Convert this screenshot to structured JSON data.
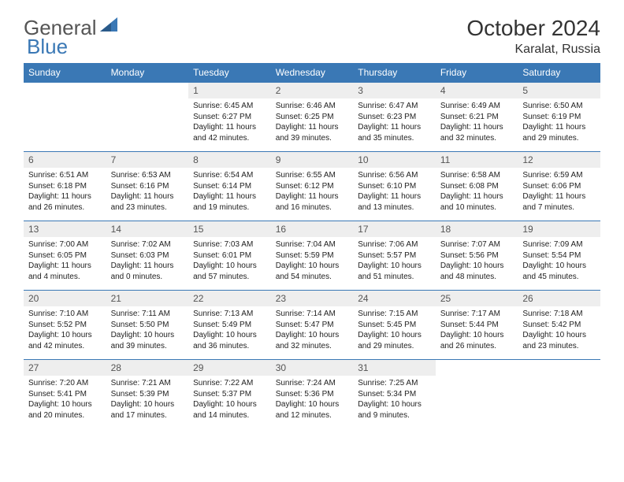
{
  "logo": {
    "text1": "General",
    "text2": "Blue",
    "shape_color": "#3a78b5"
  },
  "header": {
    "month_title": "October 2024",
    "location": "Karalat, Russia"
  },
  "colors": {
    "header_bg": "#3a78b5",
    "header_text": "#ffffff",
    "daynum_bg": "#eeeeee",
    "daynum_text": "#555555",
    "body_text": "#222222",
    "border": "#3a78b5"
  },
  "typography": {
    "month_title_size": 28,
    "location_size": 16,
    "weekday_size": 12,
    "daynum_size": 12,
    "content_size": 10
  },
  "weekdays": [
    "Sunday",
    "Monday",
    "Tuesday",
    "Wednesday",
    "Thursday",
    "Friday",
    "Saturday"
  ],
  "weeks": [
    [
      null,
      null,
      {
        "n": "1",
        "sr": "Sunrise: 6:45 AM",
        "ss": "Sunset: 6:27 PM",
        "dl": "Daylight: 11 hours and 42 minutes."
      },
      {
        "n": "2",
        "sr": "Sunrise: 6:46 AM",
        "ss": "Sunset: 6:25 PM",
        "dl": "Daylight: 11 hours and 39 minutes."
      },
      {
        "n": "3",
        "sr": "Sunrise: 6:47 AM",
        "ss": "Sunset: 6:23 PM",
        "dl": "Daylight: 11 hours and 35 minutes."
      },
      {
        "n": "4",
        "sr": "Sunrise: 6:49 AM",
        "ss": "Sunset: 6:21 PM",
        "dl": "Daylight: 11 hours and 32 minutes."
      },
      {
        "n": "5",
        "sr": "Sunrise: 6:50 AM",
        "ss": "Sunset: 6:19 PM",
        "dl": "Daylight: 11 hours and 29 minutes."
      }
    ],
    [
      {
        "n": "6",
        "sr": "Sunrise: 6:51 AM",
        "ss": "Sunset: 6:18 PM",
        "dl": "Daylight: 11 hours and 26 minutes."
      },
      {
        "n": "7",
        "sr": "Sunrise: 6:53 AM",
        "ss": "Sunset: 6:16 PM",
        "dl": "Daylight: 11 hours and 23 minutes."
      },
      {
        "n": "8",
        "sr": "Sunrise: 6:54 AM",
        "ss": "Sunset: 6:14 PM",
        "dl": "Daylight: 11 hours and 19 minutes."
      },
      {
        "n": "9",
        "sr": "Sunrise: 6:55 AM",
        "ss": "Sunset: 6:12 PM",
        "dl": "Daylight: 11 hours and 16 minutes."
      },
      {
        "n": "10",
        "sr": "Sunrise: 6:56 AM",
        "ss": "Sunset: 6:10 PM",
        "dl": "Daylight: 11 hours and 13 minutes."
      },
      {
        "n": "11",
        "sr": "Sunrise: 6:58 AM",
        "ss": "Sunset: 6:08 PM",
        "dl": "Daylight: 11 hours and 10 minutes."
      },
      {
        "n": "12",
        "sr": "Sunrise: 6:59 AM",
        "ss": "Sunset: 6:06 PM",
        "dl": "Daylight: 11 hours and 7 minutes."
      }
    ],
    [
      {
        "n": "13",
        "sr": "Sunrise: 7:00 AM",
        "ss": "Sunset: 6:05 PM",
        "dl": "Daylight: 11 hours and 4 minutes."
      },
      {
        "n": "14",
        "sr": "Sunrise: 7:02 AM",
        "ss": "Sunset: 6:03 PM",
        "dl": "Daylight: 11 hours and 0 minutes."
      },
      {
        "n": "15",
        "sr": "Sunrise: 7:03 AM",
        "ss": "Sunset: 6:01 PM",
        "dl": "Daylight: 10 hours and 57 minutes."
      },
      {
        "n": "16",
        "sr": "Sunrise: 7:04 AM",
        "ss": "Sunset: 5:59 PM",
        "dl": "Daylight: 10 hours and 54 minutes."
      },
      {
        "n": "17",
        "sr": "Sunrise: 7:06 AM",
        "ss": "Sunset: 5:57 PM",
        "dl": "Daylight: 10 hours and 51 minutes."
      },
      {
        "n": "18",
        "sr": "Sunrise: 7:07 AM",
        "ss": "Sunset: 5:56 PM",
        "dl": "Daylight: 10 hours and 48 minutes."
      },
      {
        "n": "19",
        "sr": "Sunrise: 7:09 AM",
        "ss": "Sunset: 5:54 PM",
        "dl": "Daylight: 10 hours and 45 minutes."
      }
    ],
    [
      {
        "n": "20",
        "sr": "Sunrise: 7:10 AM",
        "ss": "Sunset: 5:52 PM",
        "dl": "Daylight: 10 hours and 42 minutes."
      },
      {
        "n": "21",
        "sr": "Sunrise: 7:11 AM",
        "ss": "Sunset: 5:50 PM",
        "dl": "Daylight: 10 hours and 39 minutes."
      },
      {
        "n": "22",
        "sr": "Sunrise: 7:13 AM",
        "ss": "Sunset: 5:49 PM",
        "dl": "Daylight: 10 hours and 36 minutes."
      },
      {
        "n": "23",
        "sr": "Sunrise: 7:14 AM",
        "ss": "Sunset: 5:47 PM",
        "dl": "Daylight: 10 hours and 32 minutes."
      },
      {
        "n": "24",
        "sr": "Sunrise: 7:15 AM",
        "ss": "Sunset: 5:45 PM",
        "dl": "Daylight: 10 hours and 29 minutes."
      },
      {
        "n": "25",
        "sr": "Sunrise: 7:17 AM",
        "ss": "Sunset: 5:44 PM",
        "dl": "Daylight: 10 hours and 26 minutes."
      },
      {
        "n": "26",
        "sr": "Sunrise: 7:18 AM",
        "ss": "Sunset: 5:42 PM",
        "dl": "Daylight: 10 hours and 23 minutes."
      }
    ],
    [
      {
        "n": "27",
        "sr": "Sunrise: 7:20 AM",
        "ss": "Sunset: 5:41 PM",
        "dl": "Daylight: 10 hours and 20 minutes."
      },
      {
        "n": "28",
        "sr": "Sunrise: 7:21 AM",
        "ss": "Sunset: 5:39 PM",
        "dl": "Daylight: 10 hours and 17 minutes."
      },
      {
        "n": "29",
        "sr": "Sunrise: 7:22 AM",
        "ss": "Sunset: 5:37 PM",
        "dl": "Daylight: 10 hours and 14 minutes."
      },
      {
        "n": "30",
        "sr": "Sunrise: 7:24 AM",
        "ss": "Sunset: 5:36 PM",
        "dl": "Daylight: 10 hours and 12 minutes."
      },
      {
        "n": "31",
        "sr": "Sunrise: 7:25 AM",
        "ss": "Sunset: 5:34 PM",
        "dl": "Daylight: 10 hours and 9 minutes."
      },
      null,
      null
    ]
  ]
}
